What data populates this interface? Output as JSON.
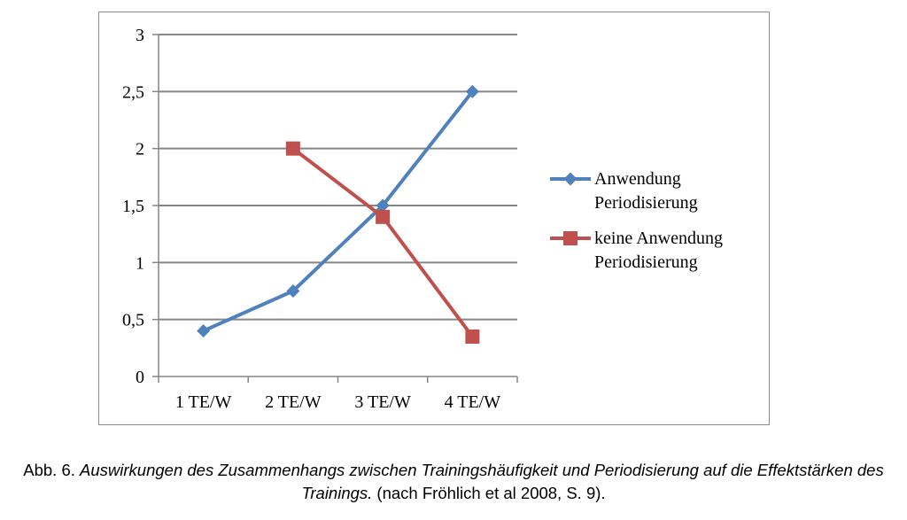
{
  "chart_data": {
    "type": "line",
    "categories": [
      "1 TE/W",
      "2 TE/W",
      "3 TE/W",
      "4 TE/W"
    ],
    "series": [
      {
        "name_lines": [
          "Anwendung",
          "Periodisierung"
        ],
        "marker": "diamond",
        "color": "#4f81bd",
        "values": [
          0.4,
          0.75,
          1.5,
          2.5
        ]
      },
      {
        "name_lines": [
          "keine Anwendung",
          "Periodisierung"
        ],
        "marker": "square",
        "color": "#c0504d",
        "values": [
          null,
          2.0,
          1.4,
          0.35
        ]
      }
    ],
    "y_ticks": [
      "0",
      "0,5",
      "1",
      "1,5",
      "2",
      "2,5",
      "3"
    ],
    "ylim": [
      0,
      3
    ],
    "grid": true,
    "legend_position": "right"
  },
  "caption": {
    "prefix": "Abb. 6. ",
    "italic": "Auswirkungen des Zusammenhangs zwischen Trainingshäufigkeit und Periodisierung auf die Effektstärken des Trainings.",
    "suffix": " (nach Fröhlich et al 2008, S. 9)."
  }
}
